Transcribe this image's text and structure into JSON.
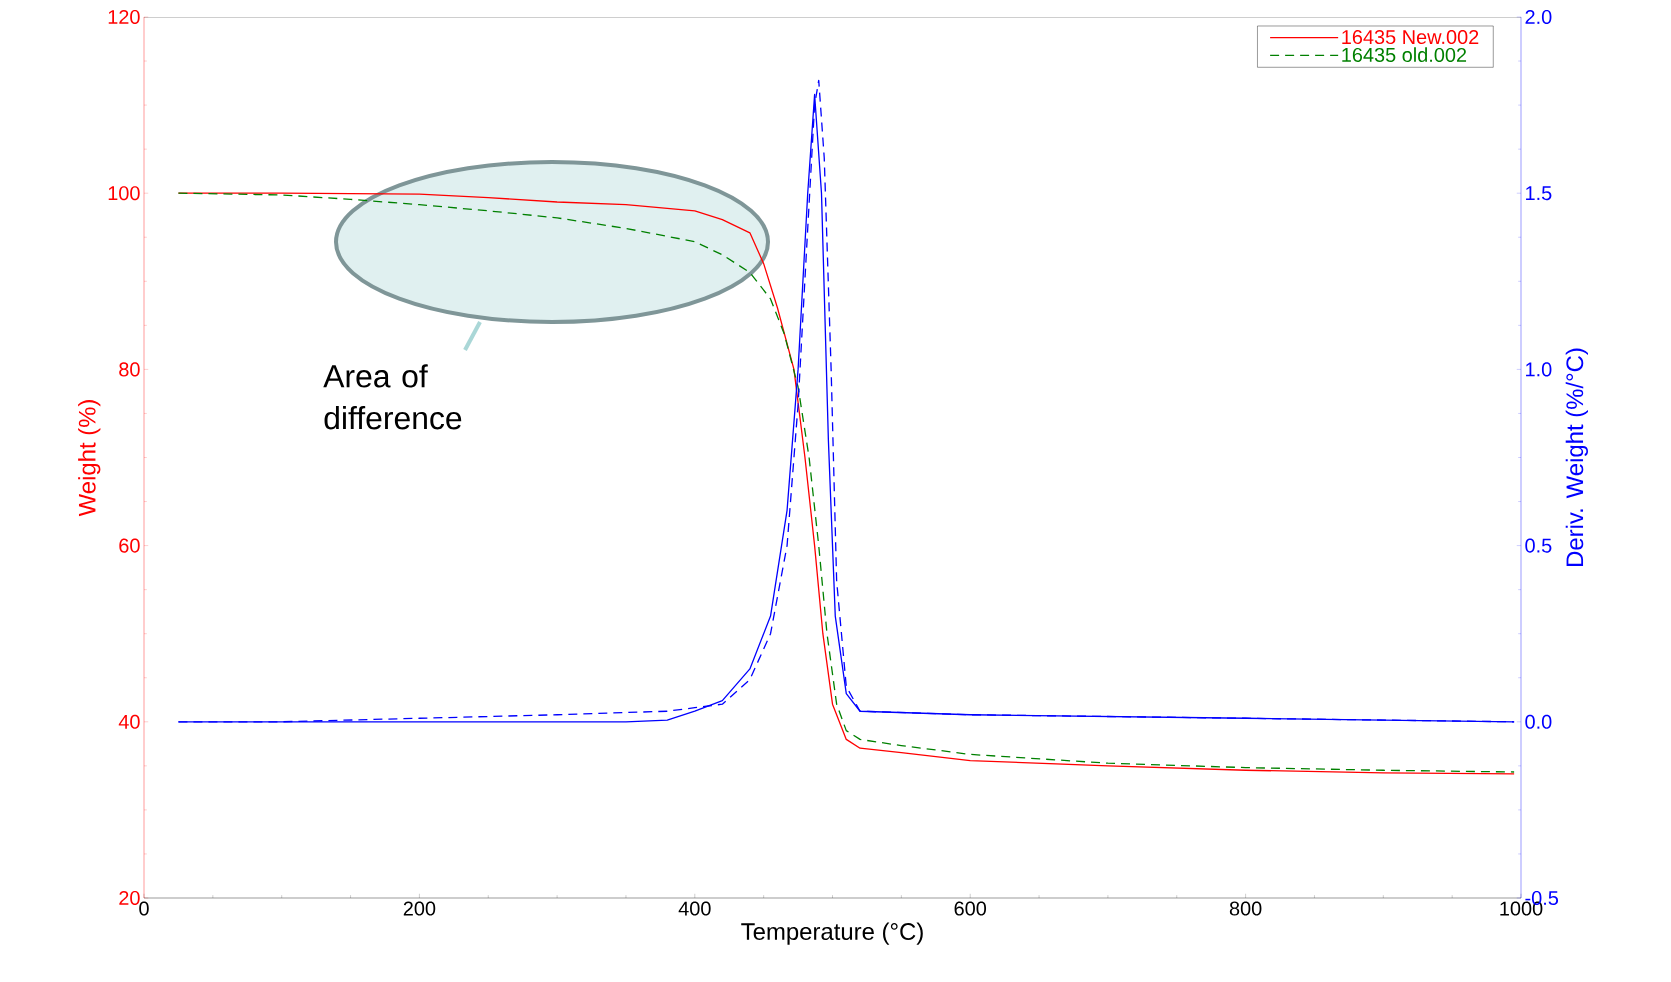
{
  "chart_data": {
    "type": "line",
    "xlabel": "Temperature (°C)",
    "ylabel": "Weight (%)",
    "y2label": "Deriv. Weight (%/°C)",
    "xlim": [
      0,
      1000
    ],
    "xticks": [
      0,
      200,
      400,
      600,
      800,
      1000
    ],
    "ylim": [
      20,
      120
    ],
    "yticks": [
      20,
      40,
      60,
      80,
      100,
      120
    ],
    "y2lim": [
      -0.5,
      2.0
    ],
    "y2ticks": [
      {
        "value": -0.5,
        "label": "-0.5"
      },
      {
        "value": 0,
        "label": "0.0"
      },
      {
        "value": 0.5,
        "label": "0.5"
      },
      {
        "value": 1.0,
        "label": "1.0"
      },
      {
        "value": 1.5,
        "label": "1.5"
      },
      {
        "value": 2.0,
        "label": "2.0"
      }
    ],
    "grid": false,
    "legend": "top right",
    "annotations": [
      "Area of difference"
    ],
    "series": [
      {
        "name": "16435 New.002",
        "color": "#ff0000",
        "line_style": "solid",
        "x": [
          25,
          100,
          200,
          250,
          300,
          350,
          400,
          420,
          440,
          450,
          460,
          472,
          480,
          487,
          493,
          500,
          510,
          520,
          550,
          600,
          700,
          800,
          900,
          995
        ],
        "values": [
          100,
          100,
          99.9,
          99.5,
          99,
          98.7,
          98,
          97,
          95.5,
          92,
          87,
          80,
          70,
          60,
          50,
          42,
          38,
          37,
          36.5,
          35.6,
          35,
          34.5,
          34.2,
          34.1
        ]
      },
      {
        "name": "16435 old.002",
        "color": "#008000",
        "line_style": "dashed",
        "x": [
          25,
          100,
          150,
          200,
          250,
          300,
          350,
          400,
          420,
          440,
          455,
          465,
          475,
          483,
          490,
          496,
          503,
          510,
          520,
          550,
          600,
          700,
          800,
          900,
          995
        ],
        "values": [
          100,
          99.8,
          99.3,
          98.7,
          98,
          97.2,
          96,
          94.5,
          93,
          91,
          88,
          84,
          78,
          70,
          60,
          50,
          42,
          39,
          38,
          37.3,
          36.3,
          35.3,
          34.8,
          34.5,
          34.3
        ]
      },
      {
        "axis": "y2",
        "color": "#0000ff",
        "line_style": "solid",
        "x": [
          25,
          100,
          200,
          300,
          350,
          380,
          400,
          420,
          440,
          455,
          467,
          475,
          482,
          487,
          492,
          497,
          502,
          510,
          520,
          600,
          800,
          995
        ],
        "values": [
          0,
          0,
          0,
          0,
          0,
          0.005,
          0.03,
          0.06,
          0.15,
          0.3,
          0.6,
          1.0,
          1.5,
          1.78,
          1.5,
          0.8,
          0.3,
          0.08,
          0.03,
          0.02,
          0.01,
          0
        ]
      },
      {
        "axis": "y2",
        "color": "#0000ff",
        "line_style": "dashed",
        "x": [
          25,
          100,
          200,
          300,
          380,
          400,
          420,
          440,
          455,
          467,
          475,
          482,
          487,
          490,
          494,
          499,
          503,
          510,
          520,
          600,
          800,
          995
        ],
        "values": [
          0,
          0,
          0.01,
          0.02,
          0.03,
          0.04,
          0.05,
          0.12,
          0.25,
          0.5,
          0.9,
          1.4,
          1.75,
          1.82,
          1.6,
          1.0,
          0.4,
          0.1,
          0.03,
          0.02,
          0.01,
          0
        ]
      }
    ]
  }
}
